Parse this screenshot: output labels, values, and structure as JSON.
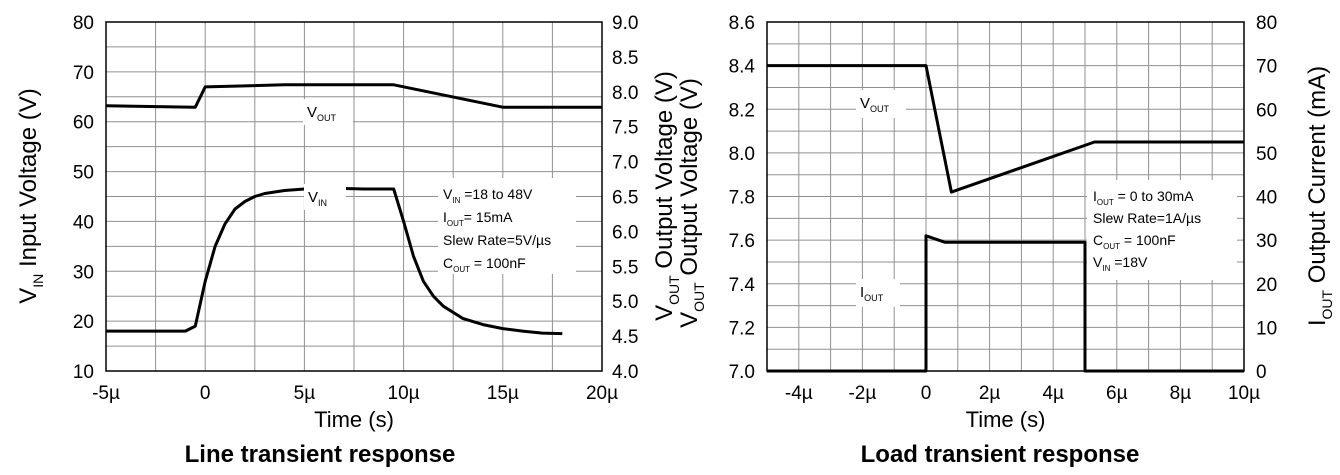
{
  "chart_data": [
    {
      "type": "line",
      "caption": "Line transient response",
      "xlabel": "Time (s)",
      "xlim": [
        -5,
        20
      ],
      "x_ticks": [
        -5,
        0,
        5,
        10,
        15,
        20
      ],
      "x_tick_labels": [
        "-5µ",
        "0",
        "5µ",
        "10µ",
        "15µ",
        "20µ"
      ],
      "y_left": {
        "label_main": "V",
        "label_sub": "IN",
        "label_rest": " Input Voltage (V)",
        "lim": [
          10,
          80
        ],
        "ticks": [
          10,
          20,
          30,
          40,
          50,
          60,
          70,
          80
        ],
        "tick_labels": [
          "10",
          "20",
          "30",
          "40",
          "50",
          "60",
          "70",
          "80"
        ]
      },
      "y_right": {
        "label_main": "V",
        "label_sub": "OUT",
        "label_rest": " Output Voltage (V)",
        "lim": [
          4.0,
          9.0
        ],
        "ticks": [
          4.0,
          4.5,
          5.0,
          5.5,
          6.0,
          6.5,
          7.0,
          7.5,
          8.0,
          8.5,
          9.0
        ],
        "tick_labels": [
          "4.0",
          "4.5",
          "5.0",
          "5.5",
          "6.0",
          "6.5",
          "7.0",
          "7.5",
          "8.0",
          "8.5",
          "9.0"
        ]
      },
      "grid": true,
      "series": [
        {
          "label_main": "V",
          "label_sub": "OUT",
          "axis": "right",
          "x": [
            -5,
            -0.5,
            0,
            4,
            9.5,
            15,
            20
          ],
          "y": [
            7.8,
            7.78,
            8.07,
            8.1,
            8.1,
            7.78,
            7.78
          ]
        },
        {
          "label_main": "V",
          "label_sub": "IN",
          "axis": "left",
          "x": [
            -5,
            -1,
            -0.5,
            0,
            0.5,
            1,
            1.5,
            2,
            2.5,
            3,
            4,
            5,
            6,
            7,
            8,
            9.5,
            10,
            10.5,
            11,
            11.5,
            12,
            13,
            14,
            15,
            16,
            17,
            18
          ],
          "y": [
            18,
            18,
            19,
            28,
            35,
            39.5,
            42.5,
            44,
            45,
            45.6,
            46.2,
            46.5,
            46.6,
            46.6,
            46.5,
            46.5,
            40,
            33,
            28,
            25,
            23,
            20.5,
            19.3,
            18.5,
            18,
            17.6,
            17.5
          ]
        }
      ],
      "annotation": [
        {
          "main": "V",
          "sub": "IN",
          "rest": " =18 to 48V"
        },
        {
          "main": "I",
          "sub": "OUT",
          "rest": "= 15mA"
        },
        {
          "main": "Slew Rate=5V/µs",
          "sub": "",
          "rest": ""
        },
        {
          "main": "C",
          "sub": "OUT",
          "rest": " = 100nF"
        }
      ]
    },
    {
      "type": "line",
      "caption": "Load transient response",
      "xlabel": "Time (s)",
      "xlim": [
        -5,
        10
      ],
      "x_ticks": [
        -4,
        -2,
        0,
        2,
        4,
        6,
        8,
        10
      ],
      "x_tick_labels": [
        "-4µ",
        "-2µ",
        "0",
        "2µ",
        "4µ",
        "6µ",
        "8µ",
        "10µ"
      ],
      "y_left": {
        "label_main": "V",
        "label_sub": "OUT",
        "label_rest": " Output Voltage (V)",
        "lim": [
          7.0,
          8.6
        ],
        "ticks": [
          7.0,
          7.2,
          7.4,
          7.6,
          7.8,
          8.0,
          8.2,
          8.4,
          8.6
        ],
        "tick_labels": [
          "7.0",
          "7.2",
          "7.4",
          "7.6",
          "7.8",
          "8.0",
          "8.2",
          "8.4",
          "8.6"
        ]
      },
      "y_right": {
        "label_main": "I",
        "label_sub": "OUT",
        "label_rest": " Output Current (mA)",
        "lim": [
          0,
          80
        ],
        "ticks": [
          0,
          10,
          20,
          30,
          40,
          50,
          60,
          70,
          80
        ],
        "tick_labels": [
          "0",
          "10",
          "20",
          "30",
          "40",
          "50",
          "60",
          "70",
          "80"
        ]
      },
      "grid": true,
      "series": [
        {
          "label_main": "V",
          "label_sub": "OUT",
          "axis": "left",
          "x": [
            -5,
            0,
            0.8,
            5.3,
            10
          ],
          "y": [
            8.4,
            8.4,
            7.82,
            8.05,
            8.05
          ]
        },
        {
          "label_main": "I",
          "label_sub": "OUT",
          "axis": "right",
          "x": [
            -5,
            0,
            0,
            0.6,
            5,
            5,
            10
          ],
          "y": [
            0,
            0,
            31,
            29.5,
            29.5,
            0,
            0
          ]
        }
      ],
      "annotation": [
        {
          "main": "I",
          "sub": "OUT",
          "rest": " = 0 to 30mA"
        },
        {
          "main": "Slew Rate=1A/µs",
          "sub": "",
          "rest": ""
        },
        {
          "main": "C",
          "sub": "OUT",
          "rest": " = 100nF"
        },
        {
          "main": "V",
          "sub": "IN",
          "rest": " =18V"
        }
      ]
    }
  ]
}
